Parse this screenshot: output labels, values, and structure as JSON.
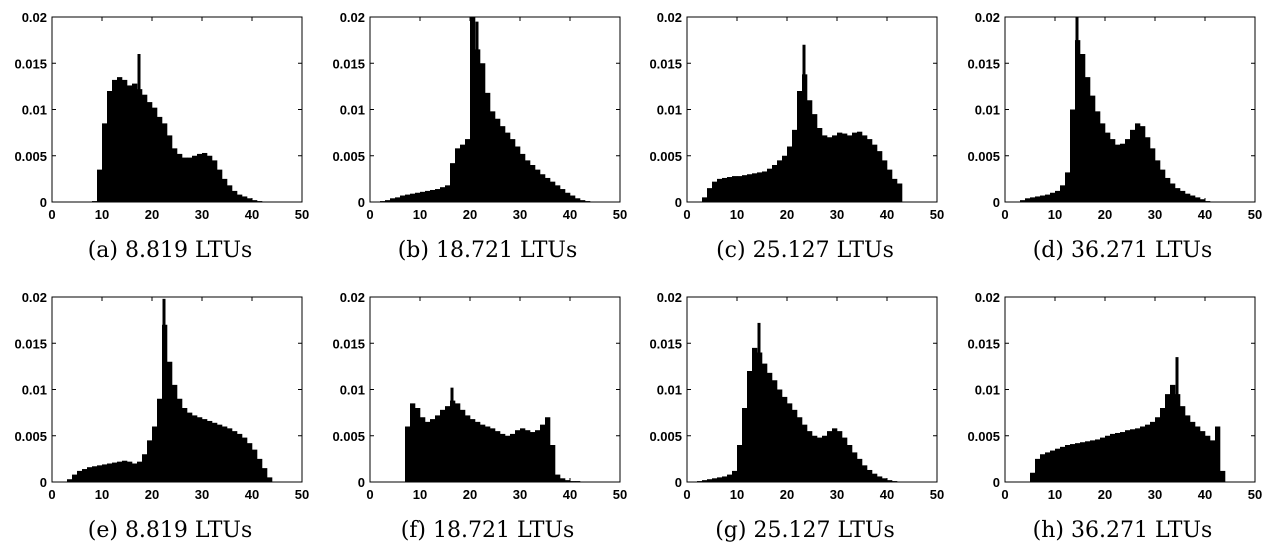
{
  "colors": {
    "bar": "#000000",
    "axis": "#000000",
    "background": "#ffffff"
  },
  "chart_data": [
    {
      "type": "bar",
      "label": "(a)",
      "caption": "8.819 LTUs",
      "xlim": [
        0,
        50
      ],
      "ylim": [
        0,
        0.02
      ],
      "xticks": [
        0,
        10,
        20,
        30,
        40,
        50
      ],
      "yticks": [
        0,
        0.005,
        0.01,
        0.015,
        0.02
      ],
      "ytick_labels": [
        "0",
        "0.005",
        "0.01",
        "0.015",
        "0.02"
      ],
      "grid": false,
      "bin_start": 0,
      "bin_width": 1,
      "values": [
        0,
        0,
        0,
        0,
        0,
        0,
        0,
        0,
        0.0001,
        0.0035,
        0.0085,
        0.012,
        0.0132,
        0.0135,
        0.0132,
        0.0126,
        0.0128,
        0.0122,
        0.0116,
        0.0108,
        0.0102,
        0.0092,
        0.0085,
        0.0072,
        0.0058,
        0.0052,
        0.0048,
        0.0048,
        0.005,
        0.0052,
        0.0053,
        0.005,
        0.0045,
        0.0035,
        0.0025,
        0.0018,
        0.0012,
        0.0008,
        0.0006,
        0.0004,
        0.0002,
        0.0001,
        5e-05,
        0,
        0,
        0,
        0,
        0,
        0,
        0
      ],
      "peak": {
        "x": 17,
        "y": 0.016
      }
    },
    {
      "type": "bar",
      "label": "(b)",
      "caption": "18.721 LTUs",
      "xlim": [
        0,
        50
      ],
      "ylim": [
        0,
        0.02
      ],
      "xticks": [
        0,
        10,
        20,
        30,
        40,
        50
      ],
      "yticks": [
        0,
        0.005,
        0.01,
        0.015,
        0.02
      ],
      "ytick_labels": [
        "0",
        "0.005",
        "0.01",
        "0.015",
        "0.02"
      ],
      "grid": false,
      "bin_start": 0,
      "bin_width": 1,
      "values": [
        0,
        0,
        0.0001,
        0.0002,
        0.0004,
        0.0005,
        0.0007,
        0.0008,
        0.0009,
        0.001,
        0.0011,
        0.0012,
        0.0013,
        0.0014,
        0.0016,
        0.0018,
        0.0042,
        0.0058,
        0.0062,
        0.0068,
        0.02,
        0.0165,
        0.015,
        0.0118,
        0.0098,
        0.009,
        0.0082,
        0.0075,
        0.0068,
        0.006,
        0.0052,
        0.0045,
        0.004,
        0.0035,
        0.003,
        0.0026,
        0.0022,
        0.0018,
        0.0014,
        0.001,
        0.0007,
        0.0004,
        0.0002,
        0.0001,
        0,
        0,
        0,
        0,
        0,
        0
      ],
      "peak": {
        "x": 21,
        "y": 0.0195
      }
    },
    {
      "type": "bar",
      "label": "(c)",
      "caption": "25.127 LTUs",
      "xlim": [
        0,
        50
      ],
      "ylim": [
        0,
        0.02
      ],
      "xticks": [
        0,
        10,
        20,
        30,
        40,
        50
      ],
      "yticks": [
        0,
        0.005,
        0.01,
        0.015,
        0.02
      ],
      "ytick_labels": [
        "0",
        "0.005",
        "0.01",
        "0.015",
        "0.02"
      ],
      "grid": false,
      "bin_start": 0,
      "bin_width": 1,
      "values": [
        0,
        0,
        0,
        0.0005,
        0.0015,
        0.0022,
        0.0025,
        0.0026,
        0.0027,
        0.0028,
        0.0028,
        0.0029,
        0.003,
        0.0031,
        0.0032,
        0.0033,
        0.0036,
        0.004,
        0.0045,
        0.005,
        0.006,
        0.0078,
        0.012,
        0.0138,
        0.011,
        0.0095,
        0.008,
        0.0072,
        0.007,
        0.0072,
        0.0075,
        0.0074,
        0.0072,
        0.0075,
        0.0076,
        0.0072,
        0.0068,
        0.0062,
        0.0055,
        0.0045,
        0.0035,
        0.0025,
        0.002,
        0,
        0,
        0,
        0,
        0,
        0,
        0
      ],
      "peak": {
        "x": 23,
        "y": 0.017
      }
    },
    {
      "type": "bar",
      "label": "(d)",
      "caption": "36.271 LTUs",
      "xlim": [
        0,
        50
      ],
      "ylim": [
        0,
        0.02
      ],
      "xticks": [
        0,
        10,
        20,
        30,
        40,
        50
      ],
      "yticks": [
        0,
        0.005,
        0.01,
        0.015,
        0.02
      ],
      "ytick_labels": [
        "0",
        "0.005",
        "0.01",
        "0.015",
        "0.02"
      ],
      "grid": false,
      "bin_start": 0,
      "bin_width": 1,
      "values": [
        0,
        0,
        0,
        0.0002,
        0.0004,
        0.0005,
        0.0006,
        0.0007,
        0.0008,
        0.001,
        0.0012,
        0.0018,
        0.0032,
        0.01,
        0.0175,
        0.016,
        0.0135,
        0.0115,
        0.0098,
        0.0085,
        0.0075,
        0.0068,
        0.0062,
        0.0063,
        0.0068,
        0.0078,
        0.0085,
        0.0082,
        0.007,
        0.0058,
        0.0045,
        0.0035,
        0.0026,
        0.002,
        0.0015,
        0.0012,
        0.0009,
        0.0007,
        0.0005,
        0.0003,
        0.0001,
        0,
        0,
        0,
        0,
        0,
        0,
        0,
        0,
        0
      ],
      "peak": {
        "x": 14,
        "y": 0.02
      }
    },
    {
      "type": "bar",
      "label": "(e)",
      "caption": "8.819 LTUs",
      "xlim": [
        0,
        50
      ],
      "ylim": [
        0,
        0.02
      ],
      "xticks": [
        0,
        10,
        20,
        30,
        40,
        50
      ],
      "yticks": [
        0,
        0.005,
        0.01,
        0.015,
        0.02
      ],
      "ytick_labels": [
        "0",
        "0.005",
        "0.01",
        "0.015",
        "0.02"
      ],
      "grid": false,
      "bin_start": 0,
      "bin_width": 1,
      "values": [
        0,
        0,
        0,
        0.0003,
        0.0008,
        0.0012,
        0.0014,
        0.0016,
        0.0017,
        0.0018,
        0.0019,
        0.002,
        0.0021,
        0.0022,
        0.0023,
        0.0022,
        0.002,
        0.0022,
        0.003,
        0.0045,
        0.006,
        0.009,
        0.017,
        0.013,
        0.0105,
        0.009,
        0.008,
        0.0075,
        0.0072,
        0.007,
        0.0068,
        0.0066,
        0.0064,
        0.0062,
        0.006,
        0.0058,
        0.0055,
        0.0052,
        0.0048,
        0.0042,
        0.0035,
        0.0025,
        0.0015,
        0.0005,
        0,
        0,
        0,
        0,
        0,
        0
      ],
      "peak": {
        "x": 22,
        "y": 0.0198
      }
    },
    {
      "type": "bar",
      "label": "(f)",
      "caption": "18.721 LTUs",
      "xlim": [
        0,
        50
      ],
      "ylim": [
        0,
        0.02
      ],
      "xticks": [
        0,
        10,
        20,
        30,
        40,
        50
      ],
      "yticks": [
        0,
        0.005,
        0.01,
        0.015,
        0.02
      ],
      "ytick_labels": [
        "0",
        "0.005",
        "0.01",
        "0.015",
        "0.02"
      ],
      "grid": false,
      "bin_start": 0,
      "bin_width": 1,
      "values": [
        0,
        0,
        0,
        0,
        0,
        0,
        0,
        0.006,
        0.0085,
        0.008,
        0.007,
        0.0065,
        0.0068,
        0.0072,
        0.0078,
        0.0082,
        0.0088,
        0.0085,
        0.0078,
        0.0072,
        0.0068,
        0.0065,
        0.0062,
        0.006,
        0.0058,
        0.0055,
        0.0052,
        0.005,
        0.0052,
        0.0056,
        0.0058,
        0.0056,
        0.0054,
        0.0056,
        0.0062,
        0.007,
        0.004,
        0.0008,
        0.0004,
        0.0002,
        0.0001,
        0.0001,
        0,
        0,
        0,
        0,
        0,
        0,
        0,
        0
      ],
      "peak": {
        "x": 16,
        "y": 0.0102
      }
    },
    {
      "type": "bar",
      "label": "(g)",
      "caption": "25.127 LTUs",
      "xlim": [
        0,
        50
      ],
      "ylim": [
        0,
        0.02
      ],
      "xticks": [
        0,
        10,
        20,
        30,
        40,
        50
      ],
      "yticks": [
        0,
        0.005,
        0.01,
        0.015,
        0.02
      ],
      "ytick_labels": [
        "0",
        "0.005",
        "0.01",
        "0.015",
        "0.02"
      ],
      "grid": false,
      "bin_start": 0,
      "bin_width": 1,
      "values": [
        0,
        0,
        0.0001,
        0.0002,
        0.0003,
        0.0004,
        0.0005,
        0.0006,
        0.0008,
        0.0012,
        0.004,
        0.008,
        0.012,
        0.0145,
        0.014,
        0.0128,
        0.0118,
        0.011,
        0.01,
        0.0092,
        0.0085,
        0.0078,
        0.007,
        0.0062,
        0.0055,
        0.005,
        0.0048,
        0.005,
        0.0055,
        0.0058,
        0.0055,
        0.0048,
        0.004,
        0.0032,
        0.0025,
        0.0018,
        0.0013,
        0.0009,
        0.0006,
        0.0004,
        0.0002,
        0.0001,
        0,
        0,
        0,
        0,
        0,
        0,
        0,
        0
      ],
      "peak": {
        "x": 14,
        "y": 0.0172
      }
    },
    {
      "type": "bar",
      "label": "(h)",
      "caption": "36.271 LTUs",
      "xlim": [
        0,
        50
      ],
      "ylim": [
        0,
        0.02
      ],
      "xticks": [
        0,
        10,
        20,
        30,
        40,
        50
      ],
      "yticks": [
        0,
        0.005,
        0.01,
        0.015,
        0.02
      ],
      "ytick_labels": [
        "0",
        "0.005",
        "0.01",
        "0.015",
        "0.02"
      ],
      "grid": false,
      "bin_start": 0,
      "bin_width": 1,
      "values": [
        0,
        0,
        0,
        0,
        0,
        0.001,
        0.0025,
        0.003,
        0.0032,
        0.0034,
        0.0036,
        0.0038,
        0.004,
        0.0041,
        0.0042,
        0.0043,
        0.0044,
        0.0045,
        0.0046,
        0.0048,
        0.005,
        0.0052,
        0.0053,
        0.0054,
        0.0056,
        0.0057,
        0.0058,
        0.006,
        0.0062,
        0.0065,
        0.007,
        0.008,
        0.0095,
        0.0105,
        0.0095,
        0.0082,
        0.0072,
        0.0065,
        0.006,
        0.0055,
        0.005,
        0.0045,
        0.006,
        0.0012,
        0,
        0,
        0,
        0,
        0,
        0
      ],
      "peak": {
        "x": 34,
        "y": 0.0135
      }
    }
  ]
}
